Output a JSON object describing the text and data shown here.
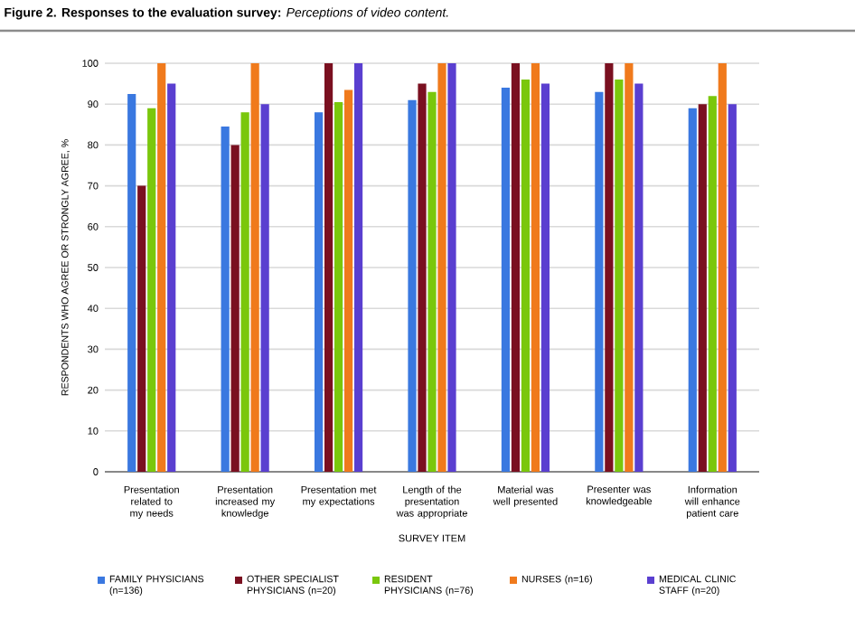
{
  "chart_data": {
    "type": "bar",
    "title": "**Figure 2. Responses to the evaluation survey:** *Perceptions of video content.*",
    "xlabel": "SURVEY ITEM",
    "ylabel": "RESPONDENTS WHO AGREE OR STRONGLY AGREE, %",
    "categories": [
      "Presentation related to my needs",
      "Presentation increased my knowledge",
      "Presentation met my expectations",
      "Length of the presentation was appropriate",
      "Material was well presented",
      "Presenter was knowledgeable",
      "Information will enhance patient care"
    ],
    "series": [
      {
        "name": "FAMILY PHYSICIANS (n=136)",
        "color": "#3a78e0",
        "values": [
          92.5,
          84.5,
          88,
          91,
          94,
          93,
          89
        ]
      },
      {
        "name": "OTHER SPECIALIST PHYSICIANS (n=20)",
        "color": "#7a1020",
        "values": [
          70,
          80,
          100,
          95,
          100,
          100,
          90
        ]
      },
      {
        "name": "RESIDENT PHYSICIANS (n=76)",
        "color": "#7ac70c",
        "values": [
          89,
          88,
          90.5,
          93,
          96,
          96,
          92
        ]
      },
      {
        "name": "NURSES (n=16)",
        "color": "#f07a1c",
        "values": [
          100,
          100,
          93.5,
          100,
          100,
          100,
          100
        ]
      },
      {
        "name": "MEDICAL CLINIC STAFF (n=20)",
        "color": "#5a3fd0",
        "values": [
          95,
          90,
          100,
          100,
          95,
          95,
          90
        ]
      }
    ],
    "ylim": [
      0,
      100
    ],
    "yticks": [
      0,
      10,
      20,
      30,
      40,
      50,
      60,
      70,
      80,
      90,
      100
    ],
    "grid": "y",
    "legend": "bottom"
  }
}
